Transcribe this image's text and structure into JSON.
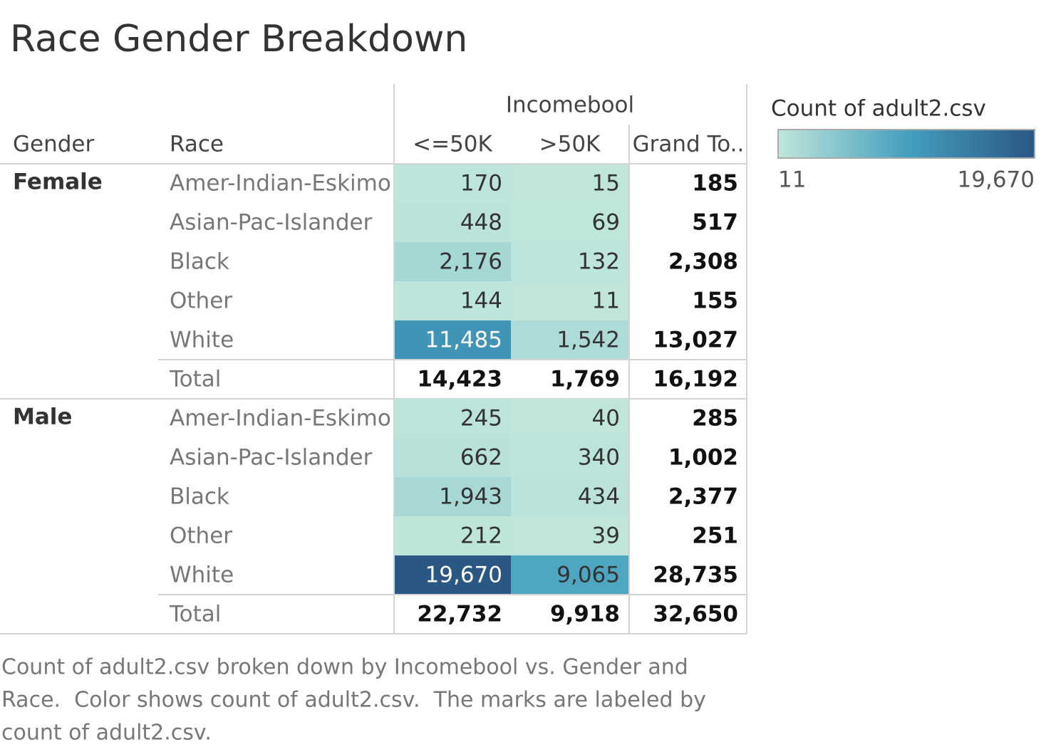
{
  "chart_data": {
    "type": "heatmap",
    "title": "Race Gender Breakdown",
    "row_headers": [
      "Gender",
      "Race"
    ],
    "column_group": "Incomebool",
    "columns": [
      "<=50K",
      ">50K"
    ],
    "grand_total_label": "Grand To..",
    "total_label": "Total",
    "groups": [
      {
        "name": "Female",
        "rows": [
          "Amer-Indian-Eskimo",
          "Asian-Pac-Islander",
          "Black",
          "Other",
          "White"
        ],
        "values": [
          [
            170,
            15
          ],
          [
            448,
            69
          ],
          [
            2176,
            132
          ],
          [
            144,
            11
          ],
          [
            11485,
            1542
          ]
        ],
        "value_labels": [
          [
            "170",
            "15"
          ],
          [
            "448",
            "69"
          ],
          [
            "2,176",
            "132"
          ],
          [
            "144",
            "11"
          ],
          [
            "11,485",
            "1,542"
          ]
        ],
        "row_totals": [
          "185",
          "517",
          "2,308",
          "155",
          "13,027"
        ],
        "column_totals": [
          "14,423",
          "1,769"
        ],
        "grand_total": "16,192"
      },
      {
        "name": "Male",
        "rows": [
          "Amer-Indian-Eskimo",
          "Asian-Pac-Islander",
          "Black",
          "Other",
          "White"
        ],
        "values": [
          [
            245,
            40
          ],
          [
            662,
            340
          ],
          [
            1943,
            434
          ],
          [
            212,
            39
          ],
          [
            19670,
            9065
          ]
        ],
        "value_labels": [
          [
            "245",
            "40"
          ],
          [
            "662",
            "340"
          ],
          [
            "1,943",
            "434"
          ],
          [
            "212",
            "39"
          ],
          [
            "19,670",
            "9,065"
          ]
        ],
        "row_totals": [
          "285",
          "1,002",
          "2,377",
          "251",
          "28,735"
        ],
        "column_totals": [
          "22,732",
          "9,918"
        ],
        "grand_total": "32,650"
      }
    ],
    "legend_title": "Count of adult2.csv",
    "legend_ticks": [
      {
        "value": 11,
        "label": "11"
      },
      {
        "value": 19670,
        "label": "19,670"
      }
    ],
    "color_stops": [
      "#c0e6db",
      "#45a0bf",
      "#2a5783"
    ],
    "caption": [
      "Count of adult2.csv broken down by Incomebool vs. Gender and",
      "Race.  Color shows count of adult2.csv.  The marks are labeled by",
      "count of adult2.csv."
    ]
  }
}
